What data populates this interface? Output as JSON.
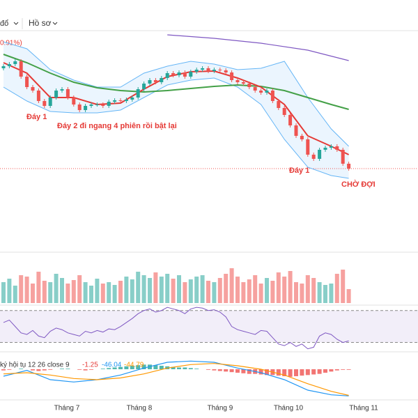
{
  "toolbar": {
    "items": [
      "đổ",
      "Hồ sơ"
    ]
  },
  "chart_data": {
    "type": "candlestick",
    "change_label": "0.91%)",
    "ylim": [
      0,
      320
    ],
    "up_color": "#26a69a",
    "down_color": "#ef5350",
    "open": [
      262,
      265,
      268,
      272,
      250,
      235,
      230,
      215,
      208,
      220,
      230,
      232,
      220,
      210,
      202,
      208,
      210,
      210,
      208,
      214,
      216,
      215,
      217,
      220,
      232,
      240,
      245,
      242,
      248,
      255,
      252,
      256,
      250,
      257,
      260,
      262,
      258,
      260,
      259,
      256,
      245,
      242,
      240,
      235,
      230,
      227,
      230,
      215,
      205,
      195,
      180,
      165,
      160,
      138,
      132,
      145,
      148,
      150,
      145,
      125
    ],
    "high": [
      268,
      271,
      275,
      275,
      253,
      238,
      233,
      218,
      223,
      233,
      235,
      235,
      223,
      213,
      211,
      213,
      213,
      213,
      217,
      219,
      219,
      220,
      223,
      235,
      243,
      248,
      248,
      251,
      258,
      258,
      259,
      259,
      260,
      263,
      265,
      265,
      263,
      263,
      262,
      259,
      248,
      245,
      243,
      238,
      233,
      233,
      233,
      218,
      208,
      198,
      183,
      168,
      163,
      141,
      148,
      151,
      153,
      153,
      148,
      128
    ],
    "low": [
      259,
      262,
      265,
      247,
      232,
      227,
      212,
      205,
      205,
      217,
      227,
      217,
      207,
      199,
      199,
      205,
      207,
      205,
      205,
      211,
      212,
      212,
      214,
      217,
      229,
      237,
      239,
      239,
      245,
      249,
      249,
      247,
      247,
      254,
      257,
      255,
      255,
      256,
      253,
      242,
      239,
      237,
      232,
      227,
      224,
      224,
      212,
      202,
      192,
      177,
      162,
      157,
      135,
      129,
      129,
      142,
      145,
      142,
      122,
      115
    ],
    "close": [
      265,
      268,
      272,
      250,
      235,
      230,
      215,
      208,
      220,
      230,
      232,
      220,
      210,
      202,
      208,
      210,
      210,
      208,
      214,
      216,
      215,
      217,
      220,
      232,
      240,
      245,
      242,
      248,
      255,
      252,
      256,
      250,
      257,
      260,
      262,
      258,
      260,
      259,
      256,
      245,
      242,
      240,
      235,
      230,
      227,
      230,
      215,
      205,
      195,
      180,
      165,
      160,
      138,
      132,
      145,
      148,
      150,
      145,
      125,
      118
    ],
    "line_x": [
      0,
      4,
      8,
      12,
      16,
      20,
      24,
      28,
      32,
      36,
      40,
      44,
      48,
      52,
      56,
      59
    ],
    "lines": [
      {
        "color": "#64b5f6",
        "values": [
          300,
          290,
          260,
          245,
          235,
          235,
          255,
          265,
          272,
          268,
          260,
          262,
          272,
          220,
          175,
          150
        ]
      },
      {
        "color": "#64b5f6",
        "values": [
          235,
          215,
          200,
          198,
          198,
          202,
          220,
          238,
          245,
          248,
          235,
          210,
          160,
          120,
          108,
          104
        ]
      },
      {
        "color": "#43a047",
        "values": [
          282,
          270,
          255,
          242,
          234,
          230,
          228,
          230,
          233,
          236,
          238,
          236,
          230,
          220,
          210,
          203
        ]
      },
      {
        "color": "#e53935",
        "values": [
          270,
          255,
          220,
          220,
          210,
          212,
          232,
          250,
          257,
          258,
          248,
          235,
          210,
          165,
          150,
          138
        ]
      }
    ],
    "long_line": {
      "color": "#7e57c2",
      "x": [
        28,
        36,
        44,
        52,
        59
      ],
      "values": [
        310,
        305,
        298,
        288,
        273
      ]
    },
    "annotations": [
      "Đáy 1",
      "Đáy 2 đi ngang 4 phiên rồi bật lại",
      "Đáy 1",
      "CHỜ ĐỢI"
    ],
    "x_labels": [
      "Tháng 7",
      "Tháng 8",
      "Tháng 9",
      "Tháng 10",
      "Tháng 11"
    ],
    "volume": {
      "ylim": [
        0,
        60
      ],
      "values": [
        30,
        35,
        25,
        40,
        38,
        28,
        45,
        32,
        30,
        42,
        36,
        28,
        33,
        40,
        30,
        25,
        35,
        28,
        30,
        26,
        32,
        38,
        34,
        45,
        40,
        36,
        44,
        38,
        42,
        35,
        40,
        30,
        34,
        38,
        40,
        32,
        30,
        36,
        42,
        50,
        38,
        30,
        34,
        40,
        28,
        36,
        32,
        44,
        38,
        46,
        30,
        28,
        40,
        36,
        30,
        26,
        28,
        42,
        48,
        20
      ]
    },
    "rsi": {
      "ylim": [
        20,
        75
      ],
      "levels": [
        30,
        70
      ],
      "color": "#7e57c2",
      "values": [
        55,
        58,
        50,
        42,
        40,
        45,
        38,
        36,
        44,
        48,
        46,
        42,
        40,
        38,
        44,
        42,
        45,
        43,
        47,
        46,
        50,
        55,
        60,
        66,
        70,
        72,
        68,
        70,
        74,
        72,
        70,
        66,
        72,
        74,
        73,
        70,
        71,
        68,
        62,
        50,
        46,
        44,
        42,
        40,
        45,
        44,
        36,
        28,
        26,
        30,
        25,
        28,
        22,
        24,
        38,
        42,
        40,
        34,
        30,
        32
      ]
    },
    "macd": {
      "label": "ký hội tụ 12 26 close 9",
      "legend_values": [
        -1.25,
        -46.04,
        -44.79
      ],
      "ylim": [
        -60,
        30
      ],
      "macd_color": "#2196f3",
      "signal_color": "#ff9800",
      "macd": [
        -12,
        -2,
        -18,
        -22,
        -18,
        -10,
        2,
        12,
        14,
        12,
        2,
        -6,
        -18,
        -36,
        -44,
        -46
      ],
      "signal": [
        -8,
        -6,
        -10,
        -16,
        -18,
        -15,
        -8,
        2,
        8,
        10,
        6,
        0,
        -10,
        -25,
        -38,
        -45
      ],
      "histogram": [
        -2,
        -1,
        0,
        1,
        0,
        -2,
        -3,
        -2,
        -1,
        0,
        1,
        1,
        0,
        -1,
        -2,
        -1,
        0,
        1,
        2,
        3,
        4,
        5,
        6,
        7,
        8,
        8,
        7,
        6,
        5,
        4,
        3,
        3,
        2,
        1,
        0,
        -1,
        -2,
        -3,
        -4,
        -5,
        -6,
        -7,
        -8,
        -8,
        -9,
        -10,
        -10,
        -11,
        -12,
        -13,
        -12,
        -11,
        -10,
        -9,
        -8,
        -6,
        -4,
        -2,
        -1,
        -1
      ]
    }
  }
}
